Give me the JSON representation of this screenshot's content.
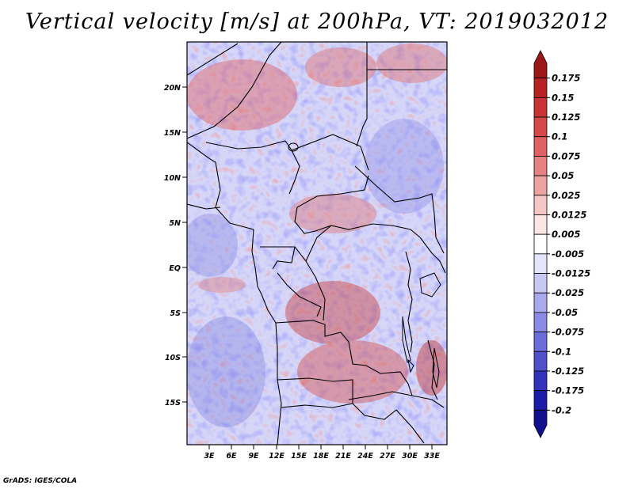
{
  "title": "Vertical velocity [m/s] at 200hPa, VT: 2019032012",
  "footer": "GrADS: IGES/COLA",
  "lat_labels": [
    "20N",
    "15N",
    "10N",
    "5N",
    "EQ",
    "5S",
    "10S",
    "15S"
  ],
  "lon_labels": [
    "3E",
    "6E",
    "9E",
    "12E",
    "15E",
    "18E",
    "21E",
    "24E",
    "27E",
    "30E",
    "33E"
  ],
  "colorbar": {
    "labels": [
      "0.175",
      "0.15",
      "0.125",
      "0.1",
      "0.075",
      "0.05",
      "0.025",
      "0.0125",
      "0.005",
      "-0.005",
      "-0.0125",
      "-0.025",
      "-0.05",
      "-0.075",
      "-0.1",
      "-0.125",
      "-0.175",
      "-0.2"
    ],
    "colors": [
      "#9e1717",
      "#b82222",
      "#c83434",
      "#d44848",
      "#de6262",
      "#e68181",
      "#eea3a3",
      "#f6c6c6",
      "#fbe6e6",
      "#ffffff",
      "#e4e4fb",
      "#c7c7f4",
      "#a9a9ee",
      "#8b8be6",
      "#6c6cdb",
      "#5050cc",
      "#3232bb",
      "#1c1ca8",
      "#10108f"
    ]
  }
}
